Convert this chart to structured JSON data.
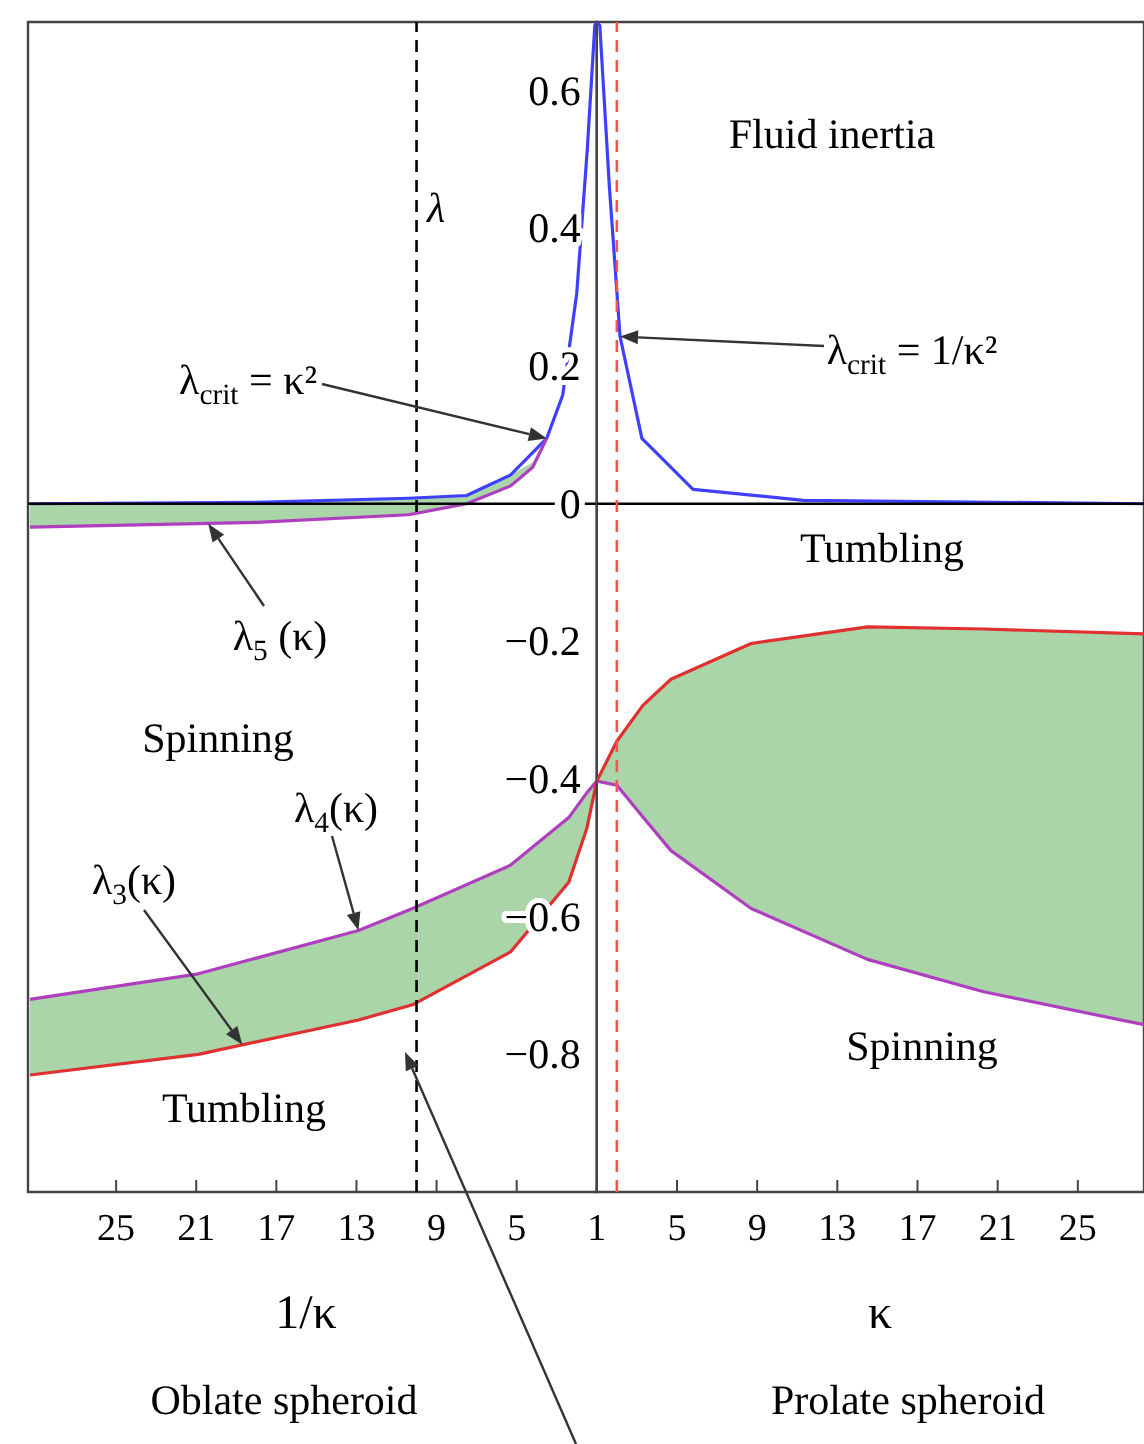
{
  "chart_data": [
    {
      "type": "line",
      "xlabel": "1/κ",
      "ylabel": "λ",
      "marker": "none",
      "xlim": [
        29.4,
        1
      ],
      "ylim": [
        -1,
        0.7
      ],
      "xticks": [
        25,
        21,
        17,
        13,
        9,
        5,
        1
      ],
      "yticks": [
        {
          "value": -0.8,
          "label": "−0.8"
        },
        {
          "value": -0.6,
          "label": "−0.6"
        },
        {
          "value": -0.4,
          "label": "−0.4"
        },
        {
          "value": -0.2,
          "label": "−0.2"
        },
        0,
        0.2,
        0.4,
        0.6
      ],
      "series": [
        {
          "type": "line",
          "color": "#3f3fff",
          "x": [
            29.3,
            18,
            10.4,
            7.5,
            5.3,
            3.5,
            2.7,
            2,
            1.47,
            1.1,
            1
          ],
          "values": [
            0,
            0.002,
            0.008,
            0.012,
            0.042,
            0.095,
            0.158,
            0.306,
            0.517,
            0.695,
            0.7
          ]
        },
        {
          "type": "line",
          "color": "#b03fc0",
          "x": [
            29.3,
            18,
            10.4,
            7.5,
            5.3,
            4.2,
            3.5
          ],
          "values": [
            -0.034,
            -0.027,
            -0.016,
            0,
            0.026,
            0.053,
            0.095
          ],
          "lower": [
            -0.034,
            -0.027,
            -0.016,
            0,
            0.026,
            0.053,
            0.095
          ],
          "upper": [
            0,
            0.002,
            0.008,
            0.012,
            0.042,
            0.06,
            0.095
          ]
        },
        {
          "type": "line",
          "color": "#b03fc0",
          "x": [
            29.3,
            20.9,
            12.9,
            10.2,
            5.3,
            2.4,
            1.5,
            1
          ],
          "values": [
            -0.72,
            -0.683,
            -0.62,
            -0.588,
            -0.525,
            -0.456,
            -0.42,
            -0.403
          ],
          "lower": [
            -0.83,
            -0.8,
            -0.75,
            -0.728,
            -0.651,
            -0.55,
            -0.472,
            -0.403
          ],
          "upper": [
            -0.72,
            -0.683,
            -0.62,
            -0.588,
            -0.525,
            -0.456,
            -0.42,
            -0.403
          ]
        },
        {
          "type": "line",
          "color": "#e03030",
          "x": [
            29.3,
            20.9,
            12.9,
            10.2,
            5.3,
            2.4,
            1.5,
            1
          ],
          "values": [
            -0.83,
            -0.8,
            -0.75,
            -0.728,
            -0.651,
            -0.55,
            -0.472,
            -0.403
          ]
        }
      ],
      "ref_lines": [
        {
          "axis": "y",
          "value": 0,
          "color": "#000000",
          "line_style": "solid"
        },
        {
          "axis": "x",
          "value": 10,
          "color": "#000000",
          "line_style": "dashed"
        }
      ],
      "annotations": [
        "λ$_{crit}$ = κ²",
        {
          "text": "λ$_{5}$ (κ)",
          "x": 20.4,
          "y": -0.029
        },
        {
          "text": "λ$_{4}$(κ)",
          "x": 12.9,
          "y": -0.62
        },
        {
          "text": "λ$_{3}$(κ)",
          "x": 18.7,
          "y": -0.786
        },
        "Spinning",
        "Tumbling",
        "Oblate spheroid"
      ]
    },
    {
      "type": "line",
      "xlabel": "κ",
      "marker": "none",
      "tick_labels": "x",
      "xlim": [
        1,
        28.3
      ],
      "ylim": [
        -1,
        0.7
      ],
      "xticks": [
        5,
        9,
        13,
        17,
        21,
        25
      ],
      "series": [
        {
          "type": "line",
          "color": "#3f3fff",
          "x": [
            1,
            1.15,
            1.62,
            2.16,
            3.25,
            5.8,
            11.3,
            28.3
          ],
          "values": [
            0.7,
            0.695,
            0.464,
            0.243,
            0.095,
            0.021,
            0.005,
            0
          ]
        },
        {
          "type": "line",
          "color": "#b03fc0",
          "x": [
            1,
            2,
            3.3,
            4.7,
            8.7,
            14.5,
            20.3,
            28.3
          ],
          "values": [
            -0.403,
            -0.409,
            -0.455,
            -0.504,
            -0.588,
            -0.662,
            -0.709,
            -0.757
          ],
          "lower": [
            -0.403,
            -0.409,
            -0.455,
            -0.504,
            -0.588,
            -0.662,
            -0.709,
            -0.757
          ],
          "upper": [
            -0.403,
            -0.345,
            -0.293,
            -0.255,
            -0.203,
            -0.179,
            -0.182,
            -0.189
          ]
        },
        {
          "type": "line",
          "color": "#e03030",
          "x": [
            1,
            2,
            3.3,
            4.7,
            8.7,
            14.5,
            20.3,
            28.3
          ],
          "values": [
            -0.403,
            -0.345,
            -0.293,
            -0.255,
            -0.203,
            -0.179,
            -0.182,
            -0.189
          ]
        }
      ],
      "ref_lines": [
        {
          "axis": "y",
          "value": 0,
          "color": "#000000",
          "line_style": "solid"
        },
        {
          "axis": "x",
          "value": 2,
          "color": "#ff5050",
          "line_style": "dashed"
        }
      ],
      "annotations": [
        {
          "text": "λ$_{crit}$ = 1/κ²",
          "x": 2.16,
          "y": 0.243
        },
        "Fluid inertia",
        "Tumbling",
        "Spinning",
        "Prolate spheroid"
      ]
    }
  ]
}
